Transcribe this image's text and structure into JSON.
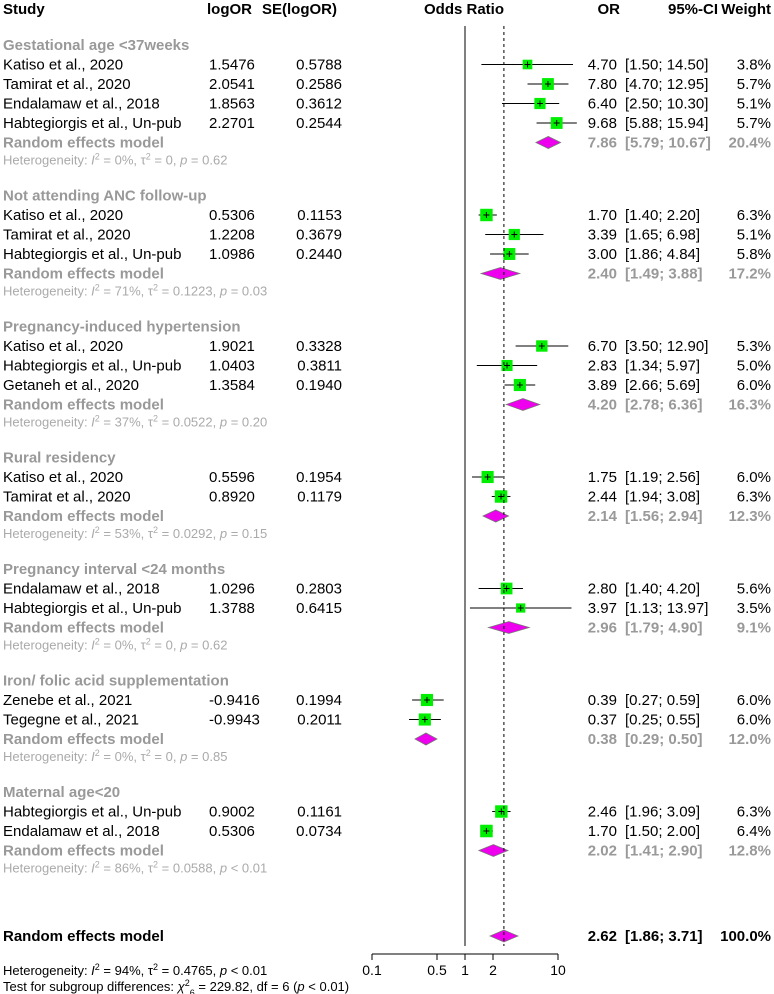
{
  "headers": {
    "study": "Study",
    "logor": "logOR",
    "selogor": "SE(logOR)",
    "or_plot": "Odds Ratio",
    "or": "OR",
    "ci": "95%-CI",
    "weight": "Weight"
  },
  "chart_data": {
    "type": "forest",
    "xscale": "log",
    "xlim": [
      0.1,
      10
    ],
    "ticks": [
      0.1,
      0.5,
      1,
      2,
      10
    ],
    "tick_labels": [
      "0.1",
      "0.5",
      "1",
      "2",
      "10"
    ],
    "null_line": 1,
    "pooled_reference": 2.62,
    "colors": {
      "study_box": "#00ee00",
      "diamond": "#ee00ee",
      "subgroup_text": "#999999",
      "heterogeneity_text": "#aaaaaa"
    },
    "groups": [
      {
        "name": "Gestational age <37weeks",
        "studies": [
          {
            "study": "Katiso et al., 2020",
            "logor": "1.5476",
            "se": "0.5788",
            "or": 4.7,
            "lo": 1.5,
            "hi": 14.5,
            "or_text": "4.70",
            "ci_text": "[1.50; 14.50]",
            "weight": "3.8%",
            "w": 3.8
          },
          {
            "study": "Tamirat et al., 2020",
            "logor": "2.0541",
            "se": "0.2586",
            "or": 7.8,
            "lo": 4.7,
            "hi": 12.95,
            "or_text": "7.80",
            "ci_text": "[4.70; 12.95]",
            "weight": "5.7%",
            "w": 5.7
          },
          {
            "study": "Endalamaw et al., 2018",
            "logor": "1.8563",
            "se": "0.3612",
            "or": 6.4,
            "lo": 2.5,
            "hi": 10.3,
            "or_text": "6.40",
            "ci_text": "[2.50; 10.30]",
            "weight": "5.1%",
            "w": 5.1
          },
          {
            "study": "Habtegiorgis et al., Un-pub",
            "logor": "2.2701",
            "se": "0.2544",
            "or": 9.68,
            "lo": 5.88,
            "hi": 15.94,
            "or_text": "9.68",
            "ci_text": "[5.88; 15.94]",
            "weight": "5.7%",
            "w": 5.7
          }
        ],
        "pooled": {
          "label": "Random effects model",
          "or": 7.86,
          "lo": 5.79,
          "hi": 10.67,
          "or_text": "7.86",
          "ci_text": "[5.79; 10.67]",
          "weight": "20.4%"
        },
        "het": {
          "i2": "0%",
          "tau2": "0",
          "p": "= 0.62"
        }
      },
      {
        "name": "Not attending ANC follow-up",
        "studies": [
          {
            "study": "Katiso et al., 2020",
            "logor": "0.5306",
            "se": "0.1153",
            "or": 1.7,
            "lo": 1.4,
            "hi": 2.2,
            "or_text": "1.70",
            "ci_text": "[1.40; 2.20]",
            "weight": "6.3%",
            "w": 6.3
          },
          {
            "study": "Tamirat et al., 2020",
            "logor": "1.2208",
            "se": "0.3679",
            "or": 3.39,
            "lo": 1.65,
            "hi": 6.98,
            "or_text": "3.39",
            "ci_text": "[1.65; 6.98]",
            "weight": "5.1%",
            "w": 5.1
          },
          {
            "study": "Habtegiorgis et al., Un-pub",
            "logor": "1.0986",
            "se": "0.2440",
            "or": 3.0,
            "lo": 1.86,
            "hi": 4.84,
            "or_text": "3.00",
            "ci_text": "[1.86; 4.84]",
            "weight": "5.8%",
            "w": 5.8
          }
        ],
        "pooled": {
          "label": "Random effects model",
          "or": 2.4,
          "lo": 1.49,
          "hi": 3.88,
          "or_text": "2.40",
          "ci_text": "[1.49; 3.88]",
          "weight": "17.2%"
        },
        "het": {
          "i2": "71%",
          "tau2": "0.1223",
          "p": "= 0.03"
        }
      },
      {
        "name": "Pregnancy-induced hypertension",
        "studies": [
          {
            "study": "Katiso et al., 2020",
            "logor": "1.9021",
            "se": "0.3328",
            "or": 6.7,
            "lo": 3.5,
            "hi": 12.9,
            "or_text": "6.70",
            "ci_text": "[3.50; 12.90]",
            "weight": "5.3%",
            "w": 5.3
          },
          {
            "study": "Habtegiorgis et al., Un-pub",
            "logor": "1.0403",
            "se": "0.3811",
            "or": 2.83,
            "lo": 1.34,
            "hi": 5.97,
            "or_text": "2.83",
            "ci_text": "[1.34; 5.97]",
            "weight": "5.0%",
            "w": 5.0
          },
          {
            "study": "Getaneh et al., 2020",
            "logor": "1.3584",
            "se": "0.1940",
            "or": 3.89,
            "lo": 2.66,
            "hi": 5.69,
            "or_text": "3.89",
            "ci_text": "[2.66; 5.69]",
            "weight": "6.0%",
            "w": 6.0
          }
        ],
        "pooled": {
          "label": "Random effects model",
          "or": 4.2,
          "lo": 2.78,
          "hi": 6.36,
          "or_text": "4.20",
          "ci_text": "[2.78; 6.36]",
          "weight": "16.3%"
        },
        "het": {
          "i2": "37%",
          "tau2": "0.0522",
          "p": "= 0.20"
        }
      },
      {
        "name": "Rural residency",
        "studies": [
          {
            "study": "Katiso et al., 2020",
            "logor": "0.5596",
            "se": "0.1954",
            "or": 1.75,
            "lo": 1.19,
            "hi": 2.56,
            "or_text": "1.75",
            "ci_text": "[1.19; 2.56]",
            "weight": "6.0%",
            "w": 6.0
          },
          {
            "study": "Tamirat et al., 2020",
            "logor": "0.8920",
            "se": "0.1179",
            "or": 2.44,
            "lo": 1.94,
            "hi": 3.08,
            "or_text": "2.44",
            "ci_text": "[1.94; 3.08]",
            "weight": "6.3%",
            "w": 6.3
          }
        ],
        "pooled": {
          "label": "Random effects model",
          "or": 2.14,
          "lo": 1.56,
          "hi": 2.94,
          "or_text": "2.14",
          "ci_text": "[1.56; 2.94]",
          "weight": "12.3%"
        },
        "het": {
          "i2": "53%",
          "tau2": "0.0292",
          "p": "= 0.15"
        }
      },
      {
        "name": "Pregnancy interval <24 months",
        "studies": [
          {
            "study": "Endalamaw et al., 2018",
            "logor": "1.0296",
            "se": "0.2803",
            "or": 2.8,
            "lo": 1.4,
            "hi": 4.2,
            "or_text": "2.80",
            "ci_text": "[1.40; 4.20]",
            "weight": "5.6%",
            "w": 5.6
          },
          {
            "study": "Habtegiorgis et al., Un-pub",
            "logor": "1.3788",
            "se": "0.6415",
            "or": 3.97,
            "lo": 1.13,
            "hi": 13.97,
            "or_text": "3.97",
            "ci_text": "[1.13; 13.97]",
            "weight": "3.5%",
            "w": 3.5
          }
        ],
        "pooled": {
          "label": "Random effects model",
          "or": 2.96,
          "lo": 1.79,
          "hi": 4.9,
          "or_text": "2.96",
          "ci_text": "[1.79; 4.90]",
          "weight": "9.1%"
        },
        "het": {
          "i2": "0%",
          "tau2": "0",
          "p": "= 0.62"
        }
      },
      {
        "name": "Iron/ folic acid supplementation",
        "studies": [
          {
            "study": "Zenebe et al., 2021",
            "logor": "-0.9416",
            "se": "0.1994",
            "or": 0.39,
            "lo": 0.27,
            "hi": 0.59,
            "or_text": "0.39",
            "ci_text": "[0.27; 0.59]",
            "weight": "6.0%",
            "w": 6.0
          },
          {
            "study": "Tegegne et al., 2021",
            "logor": "-0.9943",
            "se": "0.2011",
            "or": 0.37,
            "lo": 0.25,
            "hi": 0.55,
            "or_text": "0.37",
            "ci_text": "[0.25; 0.55]",
            "weight": "6.0%",
            "w": 6.0
          }
        ],
        "pooled": {
          "label": "Random effects model",
          "or": 0.38,
          "lo": 0.29,
          "hi": 0.5,
          "or_text": "0.38",
          "ci_text": "[0.29; 0.50]",
          "weight": "12.0%"
        },
        "het": {
          "i2": "0%",
          "tau2": "0",
          "p": "= 0.85"
        }
      },
      {
        "name": "Maternal age<20",
        "studies": [
          {
            "study": "Habtegiorgis et al., Un-pub",
            "logor": "0.9002",
            "se": "0.1161",
            "or": 2.46,
            "lo": 1.96,
            "hi": 3.09,
            "or_text": "2.46",
            "ci_text": "[1.96; 3.09]",
            "weight": "6.3%",
            "w": 6.3
          },
          {
            "study": "Endalamaw et al., 2018",
            "logor": "0.5306",
            "se": "0.0734",
            "or": 1.7,
            "lo": 1.5,
            "hi": 2.0,
            "or_text": "1.70",
            "ci_text": "[1.50; 2.00]",
            "weight": "6.4%",
            "w": 6.4
          }
        ],
        "pooled": {
          "label": "Random effects model",
          "or": 2.02,
          "lo": 1.41,
          "hi": 2.9,
          "or_text": "2.02",
          "ci_text": "[1.41; 2.90]",
          "weight": "12.8%"
        },
        "het": {
          "i2": "86%",
          "tau2": "0.0588",
          "p": "< 0.01"
        }
      }
    ],
    "overall": {
      "label": "Random effects model",
      "or": 2.62,
      "lo": 1.86,
      "hi": 3.71,
      "or_text": "2.62",
      "ci_text": "[1.86; 3.71]",
      "weight": "100.0%"
    },
    "overall_het": {
      "i2": "94%",
      "tau2": "0.4765",
      "p": "< 0.01"
    },
    "subgroup_test": {
      "label": "Test for subgroup differences:",
      "chi2": "229.82",
      "df": "6",
      "p": "< 0.01"
    }
  }
}
